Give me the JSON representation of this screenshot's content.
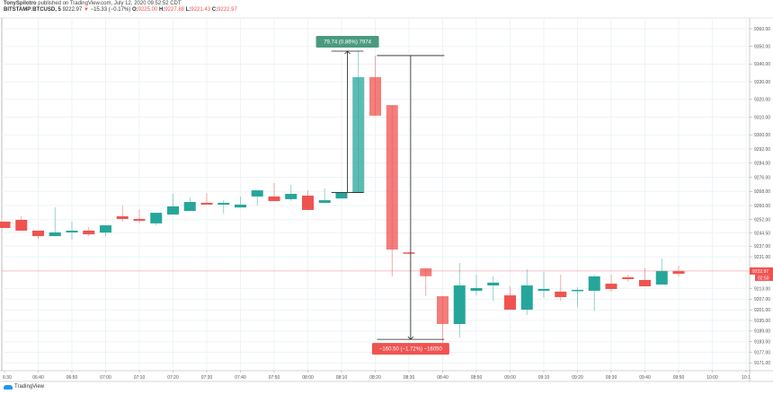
{
  "header": {
    "author": "TonySpilotro",
    "published": "published on TradingView.com, July 12, 2020 09:52:52 CDT",
    "symbol": "BITSTAMP:BTCUSD, 5",
    "last": "9222.97",
    "change_icon": "triangle-down-icon",
    "change_glyph": "▼",
    "change": "−15.33 (−0.17%)",
    "o_label": "O:",
    "o": "9225.00",
    "h_label": "H:",
    "h": "9227.88",
    "l_label": "L:",
    "l": "9221.43",
    "c_label": "C:",
    "c": "9222.97"
  },
  "footer": {
    "logo_text": "TradingView"
  },
  "colors": {
    "up": "#26a69a",
    "down": "#ef5350",
    "grid": "#eef3f6",
    "measure_up": "#4a9a80",
    "measure_down": "#ef5350"
  },
  "chart_data": {
    "type": "candlestick",
    "ylim": [
      9171,
      9360
    ],
    "grid": true,
    "y_ticks": [
      "9360.00",
      "9350.00",
      "9340.00",
      "9330.00",
      "9320.00",
      "9310.00",
      "9300.00",
      "9292.00",
      "9284.00",
      "9276.00",
      "9268.00",
      "9260.00",
      "9252.00",
      "9244.50",
      "9237.00",
      "9231.00",
      "9213.00",
      "9207.00",
      "9201.00",
      "9195.00",
      "9189.00",
      "9183.00",
      "9177.00",
      "9171.00"
    ],
    "y_tick_values": [
      9360,
      9350,
      9340,
      9330,
      9320,
      9310,
      9300,
      9292,
      9284,
      9276,
      9268,
      9260,
      9252,
      9244.5,
      9237,
      9231,
      9213,
      9207,
      9201,
      9195,
      9189,
      9183,
      9177,
      9171
    ],
    "x_ticks": [
      "6:30",
      "06:40",
      "06:50",
      "07:00",
      "07:10",
      "07:20",
      "07:30",
      "07:40",
      "07:50",
      "08:00",
      "08:10",
      "08:20",
      "08:30",
      "08:40",
      "08:50",
      "09:00",
      "09:10",
      "09:20",
      "09:30",
      "09:40",
      "09:50",
      "10:00",
      "10:1"
    ],
    "interval_minutes": 5,
    "first_bar_time": "06:30",
    "candles": [
      [
        9250.9,
        9250.9,
        9247.3,
        9247.3
      ],
      [
        9251.9,
        9253.9,
        9245.8,
        9245.8
      ],
      [
        9245.8,
        9245.8,
        9241.2,
        9242.7
      ],
      [
        9242.7,
        9259,
        9242.7,
        9244.8
      ],
      [
        9244.8,
        9250.9,
        9240.7,
        9245.8
      ],
      [
        9245.8,
        9247.8,
        9242.7,
        9243.7
      ],
      [
        9244.7,
        9248.8,
        9242.7,
        9248.8
      ],
      [
        9253.9,
        9260,
        9250.9,
        9252.4
      ],
      [
        9252.4,
        9258,
        9249.9,
        9251.4
      ],
      [
        9249.9,
        9255.9,
        9248.8,
        9255.9
      ],
      [
        9254.9,
        9266.6,
        9254.9,
        9259.5
      ],
      [
        9256.9,
        9264.5,
        9256.9,
        9262
      ],
      [
        9261.5,
        9267.1,
        9260.5,
        9260.5
      ],
      [
        9260.5,
        9263,
        9255.4,
        9261.5
      ],
      [
        9258.9,
        9265.1,
        9258.9,
        9260.5
      ],
      [
        9265.1,
        9268.6,
        9260,
        9268.6
      ],
      [
        9265.1,
        9272.7,
        9262.5,
        9262.5
      ],
      [
        9263.6,
        9271.7,
        9262.5,
        9266.6
      ],
      [
        9265.6,
        9268.6,
        9257.5,
        9257.5
      ],
      [
        9261.5,
        9269.6,
        9261.5,
        9263
      ],
      [
        9264,
        9267.6,
        9264,
        9267.1
      ],
      [
        9267.1,
        9347.3,
        9267.1,
        9332.6
      ],
      [
        9332.6,
        9344.8,
        9310.8,
        9310.8
      ],
      [
        9316.8,
        9316.8,
        9219.9,
        9235.1
      ],
      [
        9233.6,
        9233.6,
        9232.6,
        9232.6
      ],
      [
        9224.5,
        9224.5,
        9208.7,
        9220
      ],
      [
        9208.7,
        9208.7,
        9182.3,
        9193
      ],
      [
        9193,
        9227.5,
        9185.4,
        9214.8
      ],
      [
        9211.8,
        9221,
        9209.2,
        9213.3
      ],
      [
        9214.8,
        9219.9,
        9206.2,
        9216.4
      ],
      [
        9209.2,
        9214.3,
        9201.1,
        9201.1
      ],
      [
        9201.1,
        9223.9,
        9198.1,
        9214.8
      ],
      [
        9211.8,
        9222.4,
        9207.7,
        9212.8
      ],
      [
        9211.3,
        9220.9,
        9206.2,
        9208.2
      ],
      [
        9211.8,
        9213.8,
        9202.6,
        9212.3
      ],
      [
        9211.8,
        9220.9,
        9200.6,
        9219.9
      ],
      [
        9215.8,
        9220.9,
        9211.3,
        9212.8
      ],
      [
        9219.4,
        9220.9,
        9216.9,
        9218.4
      ],
      [
        9217.9,
        9224.5,
        9214.3,
        9214.3
      ],
      [
        9215.3,
        9230,
        9215.3,
        9222.9
      ],
      [
        9222.9,
        9226,
        9219.9,
        9221.4
      ]
    ],
    "candle_fields": [
      "open",
      "high",
      "low",
      "close"
    ],
    "last_price_label": "9222.97",
    "countdown_label": "02:50",
    "measurements": [
      {
        "label": "79.74 (0.86%) 7974",
        "from": 9267.4,
        "to": 9347.3,
        "start_bar": 19.4,
        "end_bar": 21.3,
        "direction": "up"
      },
      {
        "label": "−160.50 (−1.72%) −16050",
        "from": 9344.8,
        "to": 9184.3,
        "start_bar": 22.1,
        "end_bar": 26.1,
        "direction": "down"
      }
    ]
  }
}
